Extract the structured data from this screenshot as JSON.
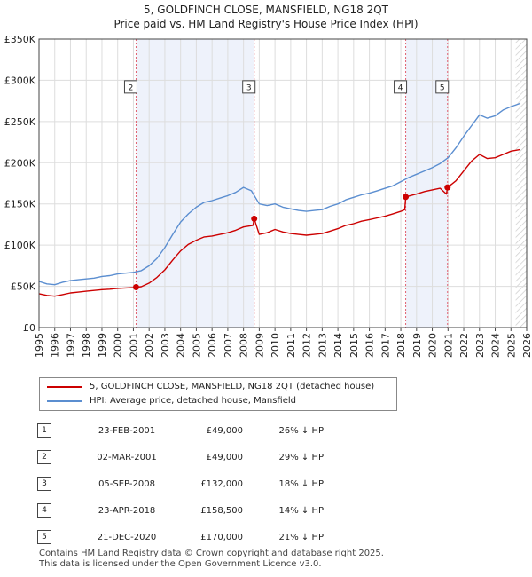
{
  "title_line1": "5, GOLDFINCH CLOSE, MANSFIELD, NG18 2QT",
  "title_line2": "Price paid vs. HM Land Registry's House Price Index (HPI)",
  "colors": {
    "red": "#cc0000",
    "blue": "#5b8ed0",
    "shade": "#eef2fb",
    "grid": "#dddddd",
    "vline": "#e06070"
  },
  "legend": {
    "red_label": "5, GOLDFINCH CLOSE, MANSFIELD, NG18 2QT (detached house)",
    "blue_label": "HPI: Average price, detached house, Mansfield"
  },
  "sales": [
    {
      "num": "1",
      "date": "23-FEB-2001",
      "price": "£49,000",
      "hpi": "26% ↓ HPI"
    },
    {
      "num": "2",
      "date": "02-MAR-2001",
      "price": "£49,000",
      "hpi": "29% ↓ HPI"
    },
    {
      "num": "3",
      "date": "05-SEP-2008",
      "price": "£132,000",
      "hpi": "18% ↓ HPI"
    },
    {
      "num": "4",
      "date": "23-APR-2018",
      "price": "£158,500",
      "hpi": "14% ↓ HPI"
    },
    {
      "num": "5",
      "date": "21-DEC-2020",
      "price": "£170,000",
      "hpi": "21% ↓ HPI"
    }
  ],
  "footer_line1": "Contains HM Land Registry data © Crown copyright and database right 2025.",
  "footer_line2": "This data is licensed under the Open Government Licence v3.0.",
  "chart_data": {
    "type": "line",
    "xlim": [
      1995,
      2026
    ],
    "ylim": [
      0,
      350000
    ],
    "y_ticks": [
      0,
      50000,
      100000,
      150000,
      200000,
      250000,
      300000,
      350000
    ],
    "y_tick_labels": [
      "£0",
      "£50K",
      "£100K",
      "£150K",
      "£200K",
      "£250K",
      "£300K",
      "£350K"
    ],
    "x_ticks": [
      1995,
      1996,
      1997,
      1998,
      1999,
      2000,
      2001,
      2002,
      2003,
      2004,
      2005,
      2006,
      2007,
      2008,
      2009,
      2010,
      2011,
      2012,
      2013,
      2014,
      2015,
      2016,
      2017,
      2018,
      2019,
      2020,
      2021,
      2022,
      2023,
      2024,
      2025,
      2026
    ],
    "x_tick_labels": [
      "1995",
      "1996",
      "1997",
      "1998",
      "1999",
      "2000",
      "2001",
      "2002",
      "2003",
      "2004",
      "2005",
      "2006",
      "2007",
      "2008",
      "2009",
      "2010",
      "2011",
      "2012",
      "2013",
      "2014",
      "2015",
      "2016",
      "2017",
      "2018",
      "2019",
      "2020",
      "2021",
      "2022",
      "2023",
      "2024",
      "2025",
      "2026"
    ],
    "shaded_ranges": [
      [
        2001.17,
        2008.68
      ],
      [
        2018.31,
        2020.97
      ]
    ],
    "hatched_from": 2025.3,
    "sale_markers": [
      {
        "label": "2",
        "x": 2001.17,
        "y": 49000,
        "label_y": 292000
      },
      {
        "label": "3",
        "x": 2008.68,
        "y": 132000,
        "label_y": 292000
      },
      {
        "label": "4",
        "x": 2018.31,
        "y": 158500,
        "label_y": 292000
      },
      {
        "label": "5",
        "x": 2020.97,
        "y": 170000,
        "label_y": 292000
      }
    ],
    "series": [
      {
        "name": "HPI: Average price, detached house, Mansfield",
        "color": "blue",
        "points": [
          [
            1995,
            56000
          ],
          [
            1995.5,
            53000
          ],
          [
            1996,
            52000
          ],
          [
            1996.5,
            55000
          ],
          [
            1997,
            57000
          ],
          [
            1997.5,
            58000
          ],
          [
            1998,
            59000
          ],
          [
            1998.5,
            60000
          ],
          [
            1999,
            62000
          ],
          [
            1999.5,
            63000
          ],
          [
            2000,
            65000
          ],
          [
            2000.5,
            66000
          ],
          [
            2001,
            67000
          ],
          [
            2001.5,
            69000
          ],
          [
            2002,
            75000
          ],
          [
            2002.5,
            84000
          ],
          [
            2003,
            97000
          ],
          [
            2003.5,
            113000
          ],
          [
            2004,
            128000
          ],
          [
            2004.5,
            138000
          ],
          [
            2005,
            146000
          ],
          [
            2005.5,
            152000
          ],
          [
            2006,
            154000
          ],
          [
            2006.5,
            157000
          ],
          [
            2007,
            160000
          ],
          [
            2007.5,
            164000
          ],
          [
            2008,
            170000
          ],
          [
            2008.5,
            166000
          ],
          [
            2009,
            150000
          ],
          [
            2009.5,
            148000
          ],
          [
            2010,
            150000
          ],
          [
            2010.5,
            146000
          ],
          [
            2011,
            144000
          ],
          [
            2011.5,
            142000
          ],
          [
            2012,
            141000
          ],
          [
            2012.5,
            142000
          ],
          [
            2013,
            143000
          ],
          [
            2013.5,
            147000
          ],
          [
            2014,
            150000
          ],
          [
            2014.5,
            155000
          ],
          [
            2015,
            158000
          ],
          [
            2015.5,
            161000
          ],
          [
            2016,
            163000
          ],
          [
            2016.5,
            166000
          ],
          [
            2017,
            169000
          ],
          [
            2017.5,
            172000
          ],
          [
            2018,
            177000
          ],
          [
            2018.5,
            182000
          ],
          [
            2019,
            186000
          ],
          [
            2019.5,
            190000
          ],
          [
            2020,
            194000
          ],
          [
            2020.5,
            199000
          ],
          [
            2021,
            206000
          ],
          [
            2021.5,
            218000
          ],
          [
            2022,
            232000
          ],
          [
            2022.5,
            245000
          ],
          [
            2023,
            258000
          ],
          [
            2023.5,
            254000
          ],
          [
            2024,
            257000
          ],
          [
            2024.5,
            264000
          ],
          [
            2025,
            268000
          ],
          [
            2025.6,
            272000
          ]
        ]
      },
      {
        "name": "5, GOLDFINCH CLOSE, MANSFIELD, NG18 2QT (detached house)",
        "color": "red",
        "points": [
          [
            1995,
            41000
          ],
          [
            1995.5,
            39000
          ],
          [
            1996,
            38000
          ],
          [
            1996.5,
            40000
          ],
          [
            1997,
            42000
          ],
          [
            1997.5,
            43000
          ],
          [
            1998,
            44000
          ],
          [
            1998.5,
            45000
          ],
          [
            1999,
            46000
          ],
          [
            1999.5,
            46500
          ],
          [
            2000,
            47500
          ],
          [
            2000.5,
            48000
          ],
          [
            2001,
            48500
          ],
          [
            2001.17,
            49000
          ],
          [
            2001.5,
            49500
          ],
          [
            2002,
            54000
          ],
          [
            2002.5,
            61000
          ],
          [
            2003,
            70000
          ],
          [
            2003.5,
            82000
          ],
          [
            2004,
            93000
          ],
          [
            2004.5,
            101000
          ],
          [
            2005,
            106000
          ],
          [
            2005.5,
            110000
          ],
          [
            2006,
            111000
          ],
          [
            2006.5,
            113000
          ],
          [
            2007,
            115000
          ],
          [
            2007.5,
            118000
          ],
          [
            2008,
            122000
          ],
          [
            2008.6,
            124000
          ],
          [
            2008.68,
            132000
          ],
          [
            2009,
            113000
          ],
          [
            2009.5,
            115000
          ],
          [
            2010,
            119000
          ],
          [
            2010.5,
            116000
          ],
          [
            2011,
            114000
          ],
          [
            2011.5,
            113000
          ],
          [
            2012,
            112000
          ],
          [
            2012.5,
            113000
          ],
          [
            2013,
            114000
          ],
          [
            2013.5,
            117000
          ],
          [
            2014,
            120000
          ],
          [
            2014.5,
            124000
          ],
          [
            2015,
            126000
          ],
          [
            2015.5,
            129000
          ],
          [
            2016,
            131000
          ],
          [
            2016.5,
            133000
          ],
          [
            2017,
            135000
          ],
          [
            2017.5,
            138000
          ],
          [
            2018,
            141000
          ],
          [
            2018.25,
            143000
          ],
          [
            2018.31,
            158500
          ],
          [
            2018.6,
            160000
          ],
          [
            2019,
            162000
          ],
          [
            2019.5,
            165000
          ],
          [
            2020,
            167000
          ],
          [
            2020.5,
            169000
          ],
          [
            2020.9,
            162000
          ],
          [
            2020.97,
            170000
          ],
          [
            2021.5,
            178000
          ],
          [
            2022,
            190000
          ],
          [
            2022.5,
            202000
          ],
          [
            2023,
            210000
          ],
          [
            2023.5,
            205000
          ],
          [
            2024,
            206000
          ],
          [
            2024.5,
            210000
          ],
          [
            2025,
            214000
          ],
          [
            2025.6,
            216000
          ]
        ]
      }
    ]
  }
}
